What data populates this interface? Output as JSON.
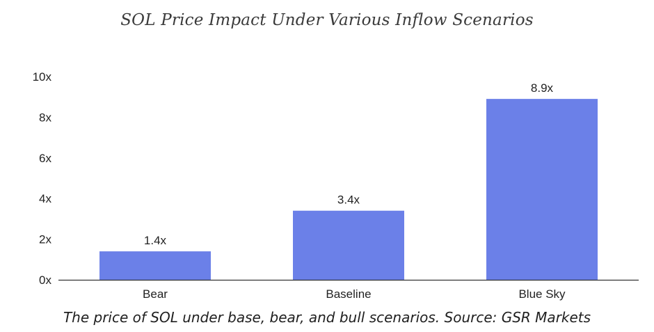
{
  "chart_data": {
    "type": "bar",
    "title": "SOL Price Impact Under Various Inflow Scenarios",
    "categories": [
      "Bear",
      "Baseline",
      "Blue Sky"
    ],
    "values": [
      1.4,
      3.4,
      8.9
    ],
    "data_labels": [
      "1.4x",
      "3.4x",
      "8.9x"
    ],
    "yticks": [
      "0x",
      "2x",
      "4x",
      "6x",
      "8x",
      "10x"
    ],
    "ytick_values": [
      0,
      2,
      4,
      6,
      8,
      10
    ],
    "ylim": [
      0,
      10
    ],
    "grid": false,
    "legend": "none",
    "bar_color": "#6b80e8",
    "caption": "The price of SOL under base, bear, and bull scenarios. Source: GSR Markets"
  }
}
